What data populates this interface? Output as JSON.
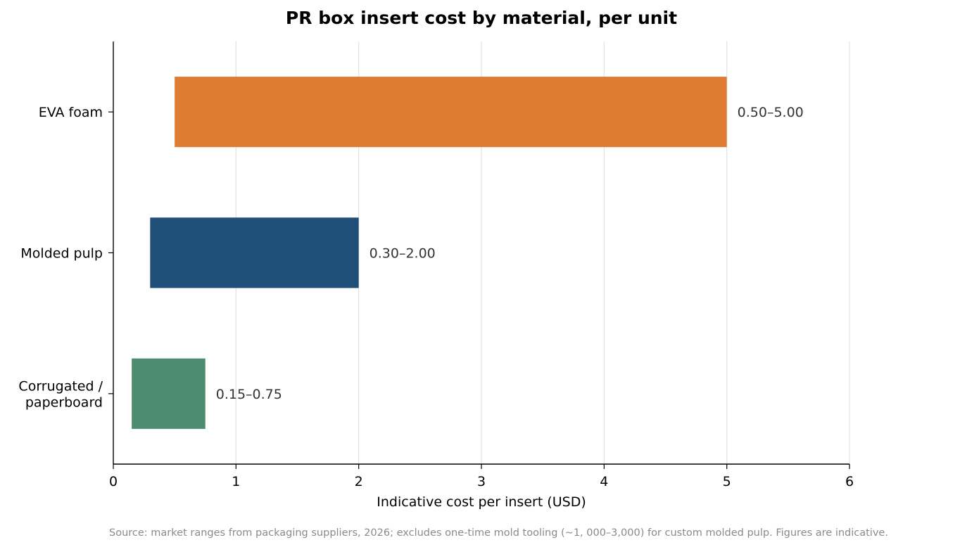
{
  "chart_data": {
    "type": "bar",
    "orientation": "horizontal",
    "title": "PR box insert cost by material, per unit",
    "xlabel": "Indicative cost per insert (USD)",
    "ylabel": "",
    "xlim": [
      0,
      6
    ],
    "xticks": [
      "0",
      "1",
      "2",
      "3",
      "4",
      "5",
      "6"
    ],
    "grid": "vertical",
    "categories": [
      {
        "lines": [
          "EVA foam"
        ],
        "min": 0.5,
        "max": 5.0,
        "label": "0.50–5.00",
        "color": "#e07b33"
      },
      {
        "lines": [
          "Molded pulp"
        ],
        "min": 0.3,
        "max": 2.0,
        "label": "0.30–2.00",
        "color": "#1f4e79"
      },
      {
        "lines": [
          "Corrugated /",
          "paperboard"
        ],
        "min": 0.15,
        "max": 0.75,
        "label": "0.15–0.75",
        "color": "#4e8c6f"
      }
    ],
    "source": "Source: market ranges from packaging suppliers, 2026; excludes one-time mold tooling (~1, 000–3,000) for custom molded pulp. Figures are indicative."
  }
}
